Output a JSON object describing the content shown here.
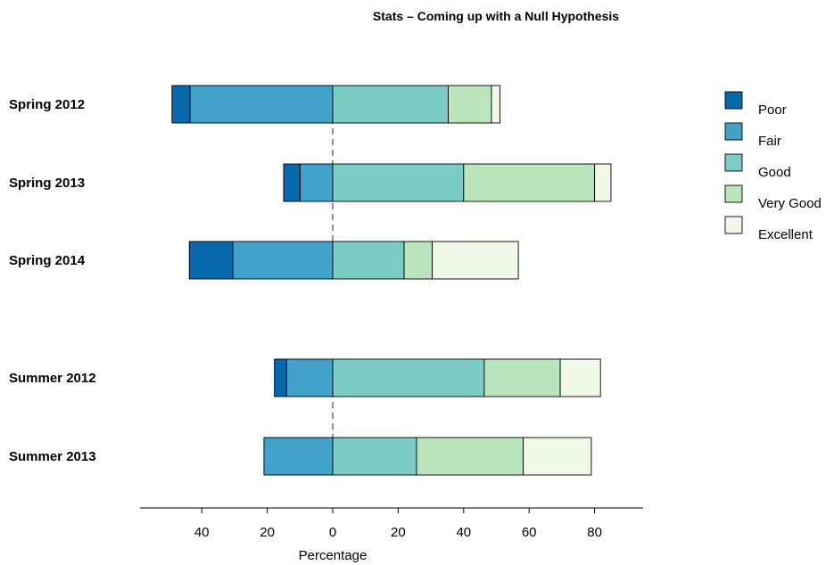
{
  "chart_data": {
    "type": "bar",
    "subtype": "diverging-stacked",
    "title": "Stats – Coming up with a Null Hypothesis",
    "xlabel": "Percentage",
    "ylabel": "",
    "xlim": [
      -59,
      95
    ],
    "xticks": [
      -40,
      -20,
      0,
      20,
      40,
      60,
      80
    ],
    "xtick_labels": [
      "40",
      "20",
      "0",
      "20",
      "40",
      "60",
      "80"
    ],
    "legend_position": "right",
    "categories": [
      "Spring 2012",
      "Spring 2013",
      "Spring 2014",
      "Summer 2012",
      "Summer 2013"
    ],
    "groups": [
      [
        "Spring 2012",
        "Spring 2013",
        "Spring 2014"
      ],
      [
        "Summer 2012",
        "Summer 2013"
      ]
    ],
    "series": [
      {
        "name": "Poor",
        "side": "negative",
        "color": "#0868ac",
        "values": [
          5.5,
          5.0,
          13.3,
          3.7,
          0.0
        ]
      },
      {
        "name": "Fair",
        "side": "negative",
        "color": "#43a2ca",
        "values": [
          43.6,
          10.0,
          30.5,
          14.1,
          21.0
        ]
      },
      {
        "name": "Good",
        "side": "positive",
        "color": "#7bccc4",
        "values": [
          35.3,
          40.0,
          21.8,
          46.3,
          25.6
        ]
      },
      {
        "name": "Very Good",
        "side": "positive",
        "color": "#bae4bc",
        "values": [
          13.2,
          40.0,
          8.6,
          23.2,
          32.6
        ]
      },
      {
        "name": "Excellent",
        "side": "positive",
        "color": "#f0f9e8",
        "values": [
          2.6,
          5.0,
          26.3,
          12.3,
          20.8
        ]
      }
    ]
  }
}
